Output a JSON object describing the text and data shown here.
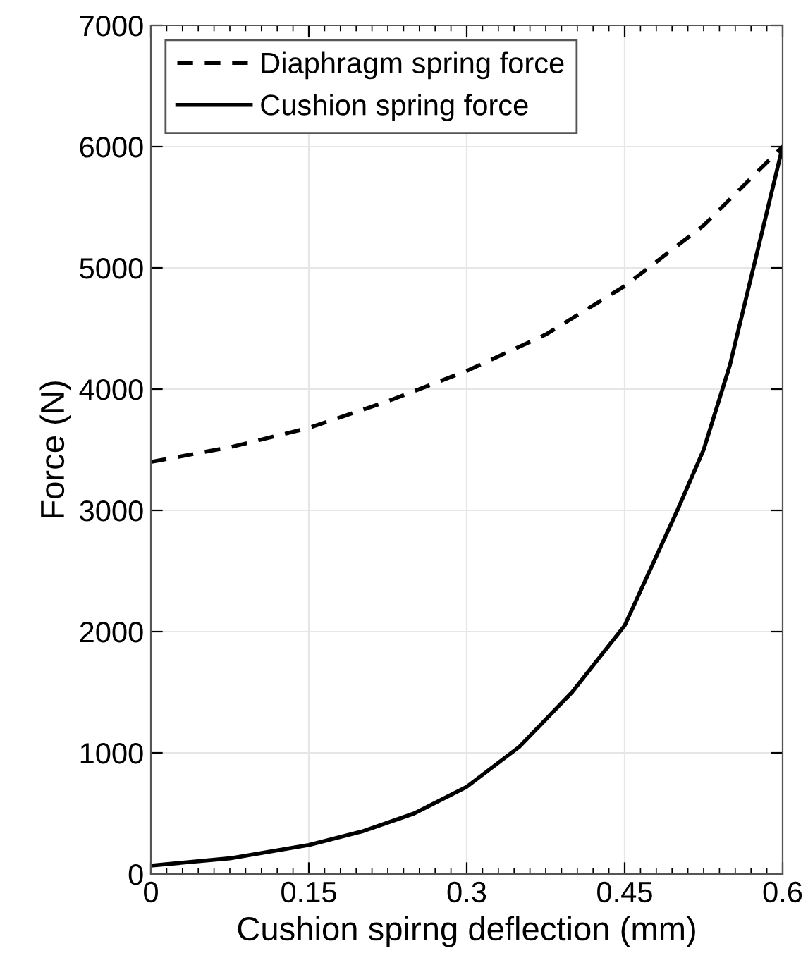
{
  "chart_data": {
    "type": "line",
    "xlabel": "Cushion spirng deflection (mm)",
    "ylabel": "Force (N)",
    "xlim": [
      0,
      0.6
    ],
    "ylim": [
      0,
      7000
    ],
    "xticks": [
      0,
      0.15,
      0.3,
      0.45,
      0.6
    ],
    "yticks": [
      0,
      1000,
      2000,
      3000,
      4000,
      5000,
      6000,
      7000
    ],
    "grid": true,
    "legend": "top left",
    "marker": "none",
    "series": [
      {
        "name": "Diaphragm spring force",
        "color": "#000000",
        "line_style": "dashed",
        "x": [
          0,
          0.075,
          0.15,
          0.225,
          0.3,
          0.375,
          0.45,
          0.525,
          0.6
        ],
        "values": [
          3400,
          3520,
          3680,
          3900,
          4150,
          4450,
          4850,
          5350,
          6000
        ]
      },
      {
        "name": "Cushion spring force",
        "color": "#000000",
        "line_style": "solid",
        "x": [
          0,
          0.075,
          0.15,
          0.2,
          0.25,
          0.3,
          0.35,
          0.4,
          0.45,
          0.5,
          0.525,
          0.55,
          0.575,
          0.6
        ],
        "values": [
          70,
          130,
          240,
          350,
          500,
          720,
          1050,
          1500,
          2050,
          3000,
          3500,
          4200,
          5100,
          6000
        ]
      }
    ]
  }
}
